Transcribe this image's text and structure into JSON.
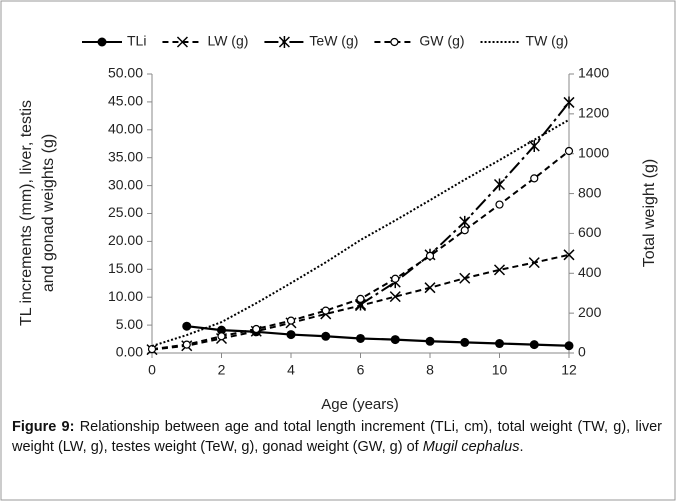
{
  "chart_data": {
    "type": "line",
    "ylabel": [
      "TL increments (mm), liver, testis",
      "and gonad weights (g)"
    ],
    "y2label": "Total weight (g)",
    "xlabel": "Age (years)",
    "x": [
      0,
      1,
      2,
      3,
      4,
      5,
      6,
      7,
      8,
      9,
      10,
      11,
      12
    ],
    "xlim": [
      0,
      12
    ],
    "xticks": [
      0,
      2,
      4,
      6,
      8,
      10,
      12
    ],
    "ylim": [
      0,
      50
    ],
    "yticks": [
      {
        "value": 0,
        "label": "0.00"
      },
      {
        "value": 5,
        "label": "5.00"
      },
      {
        "value": 10,
        "label": "10.00"
      },
      {
        "value": 15,
        "label": "15.00"
      },
      {
        "value": 20,
        "label": "20.00"
      },
      {
        "value": 25,
        "label": "25.00"
      },
      {
        "value": 30,
        "label": "30.00"
      },
      {
        "value": 35,
        "label": "35.00"
      },
      {
        "value": 40,
        "label": "40.00"
      },
      {
        "value": 45,
        "label": "45.00"
      },
      {
        "value": 50,
        "label": "50.00"
      }
    ],
    "y2lim": [
      0,
      1400
    ],
    "y2ticks": [
      0,
      200,
      400,
      600,
      800,
      1000,
      1200,
      1400
    ],
    "legend": "top",
    "series": [
      {
        "name": "TLi",
        "color": "#000000",
        "dash": "solid",
        "marker": "circle-filled",
        "values": [
          null,
          4.8,
          4.1,
          3.8,
          3.3,
          3.0,
          2.6,
          2.4,
          2.1,
          1.9,
          1.7,
          1.5,
          1.3
        ]
      },
      {
        "name": "LW (g)",
        "color": "#000000",
        "dash": "dashed",
        "marker": "x",
        "values": [
          0.6,
          1.3,
          2.6,
          3.9,
          5.4,
          7.0,
          8.5,
          10.1,
          11.7,
          13.4,
          14.9,
          16.2,
          17.6
        ]
      },
      {
        "name": "TeW (g)",
        "color": "#000000",
        "dash": "dash-dot",
        "marker": "asterisk",
        "values": [
          null,
          null,
          null,
          null,
          null,
          null,
          8.7,
          12.7,
          17.6,
          23.5,
          30.2,
          37.1,
          44.9
        ]
      },
      {
        "name": "GW (g)",
        "color": "#000000",
        "dash": "dashed",
        "marker": "circle-open",
        "values": [
          0.7,
          1.5,
          3.0,
          4.3,
          5.8,
          7.6,
          9.7,
          13.3,
          17.4,
          22.0,
          26.6,
          31.3,
          36.2
        ]
      },
      {
        "name": "TW (g)",
        "color": "#000000",
        "dash": "dotted",
        "marker": "none",
        "axis": "y2",
        "values": [
          35,
          90,
          155,
          250,
          351,
          455,
          567,
          665,
          767,
          870,
          968,
          1070,
          1170
        ]
      }
    ]
  },
  "caption": {
    "label": "Figure 9:",
    "text": "Relationship between age and total length increment (TLi, cm), total weight (TW, g), liver weight (LW, g), testes weight (TeW, g), gonad weight (GW, g) of",
    "species": "Mugil cephalus",
    "end": "."
  }
}
